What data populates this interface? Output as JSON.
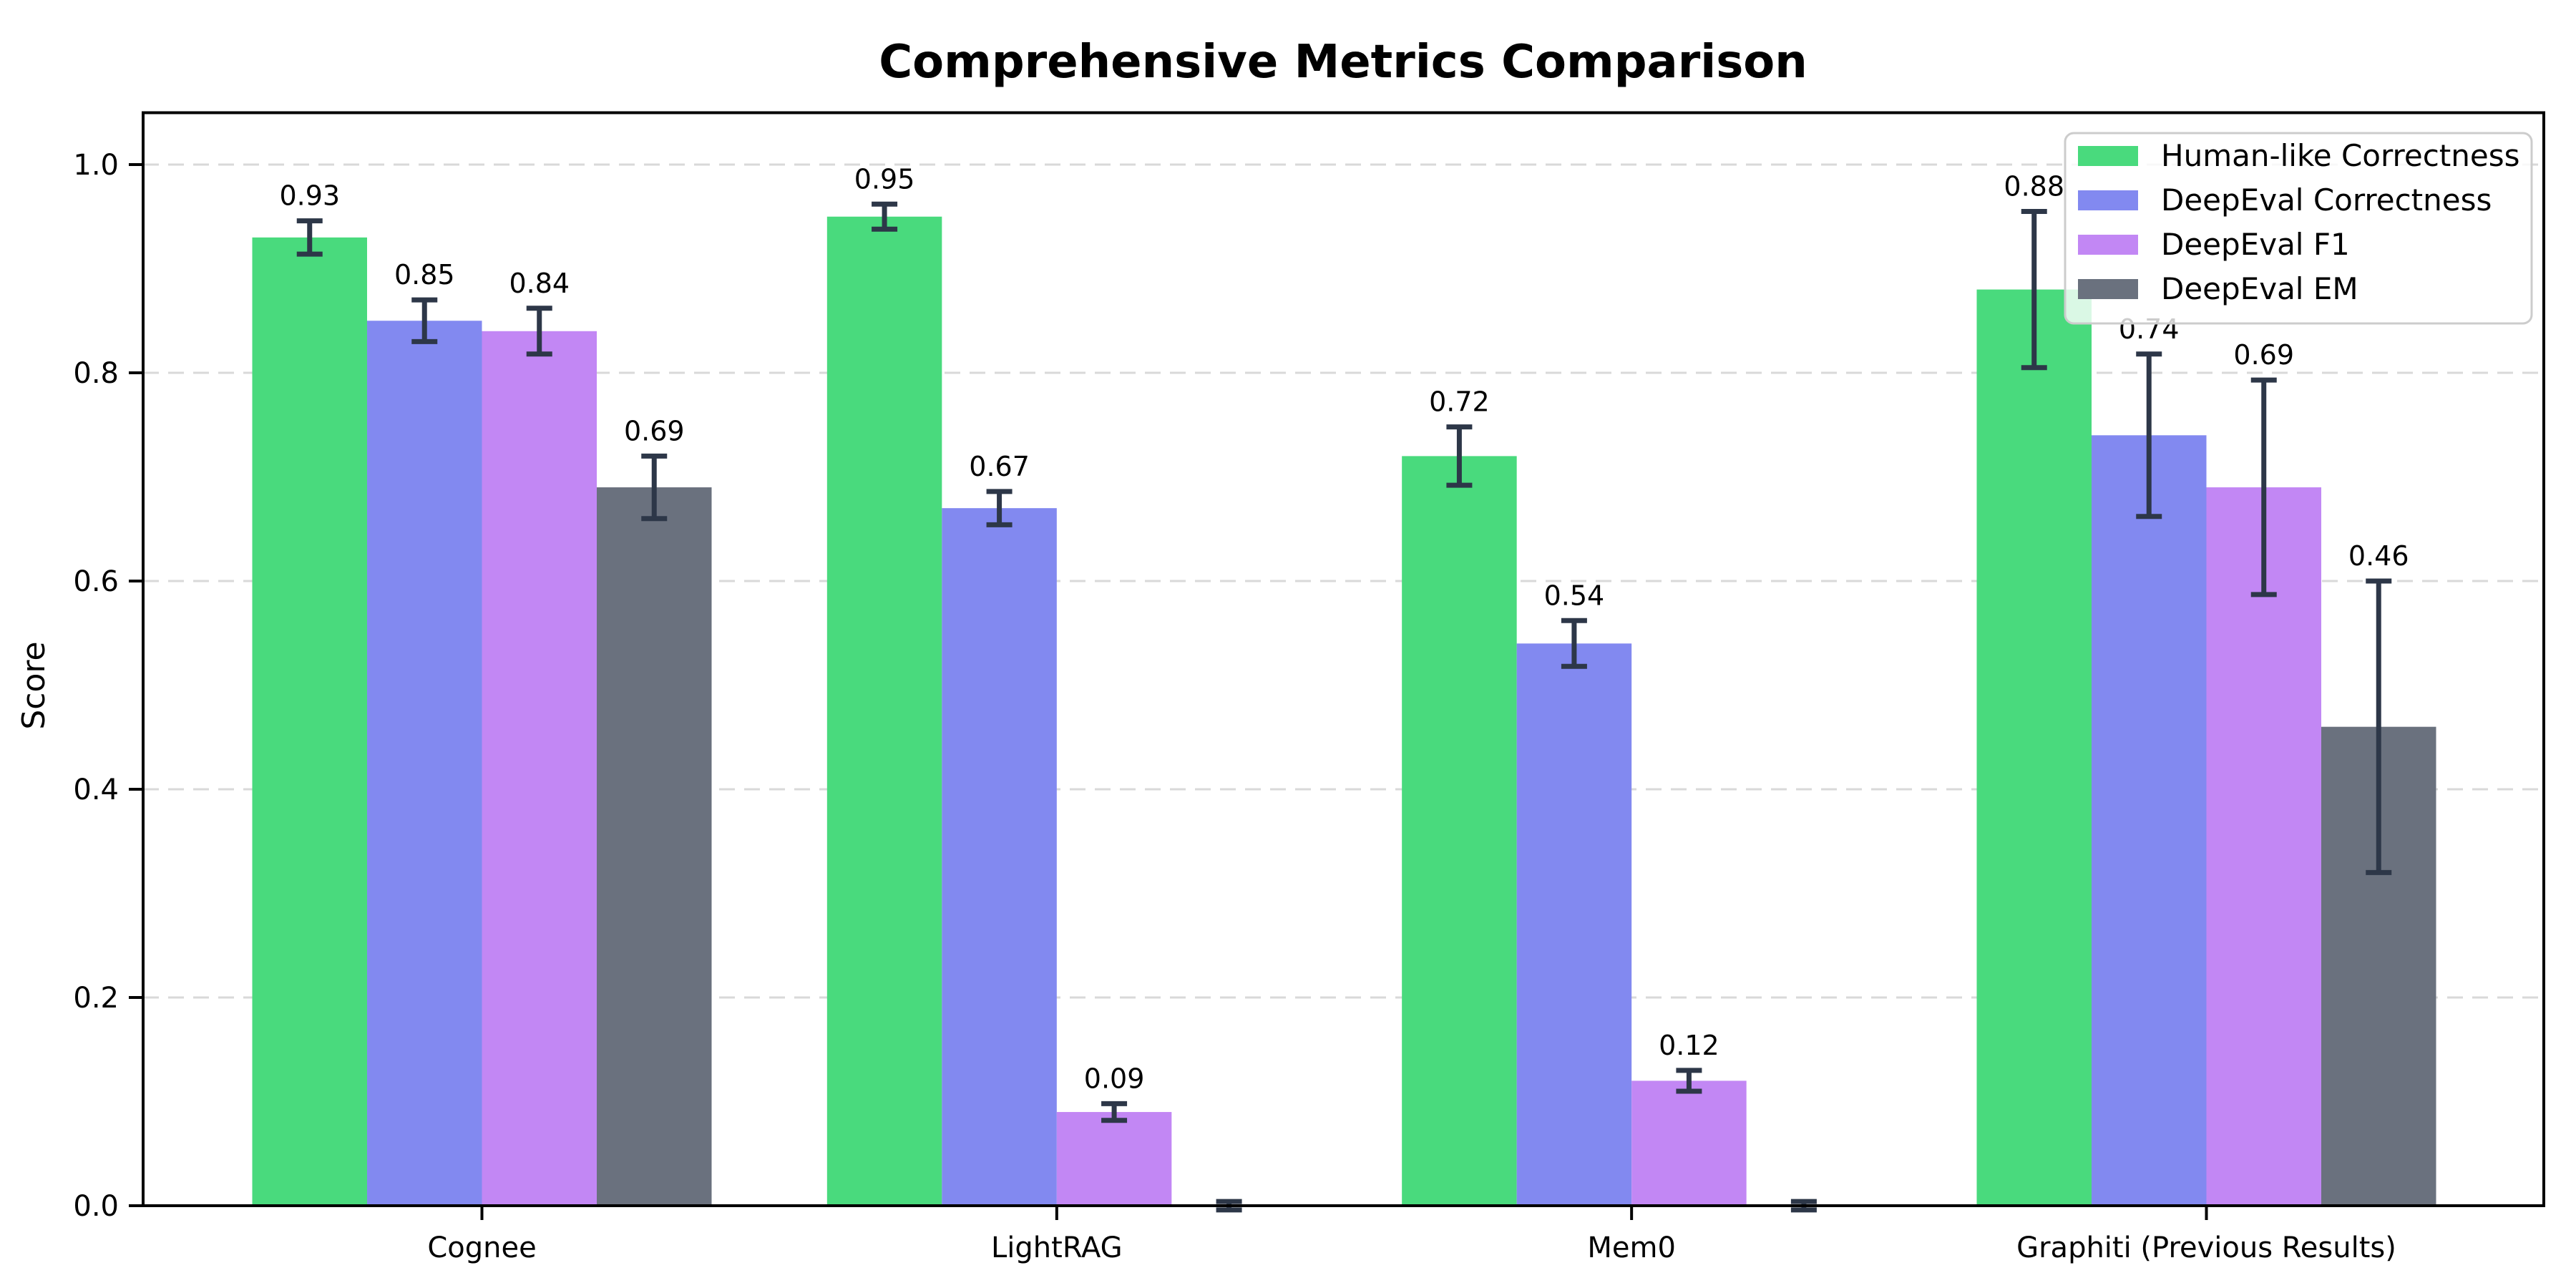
{
  "figure": {
    "background": "#ffffff"
  },
  "chart_data": {
    "type": "bar",
    "title": "Comprehensive Metrics Comparison",
    "xlabel": "",
    "ylabel": "Score",
    "categories": [
      "Cognee",
      "LightRAG",
      "Mem0",
      "Graphiti (Previous Results)"
    ],
    "series": [
      {
        "name": "Human-like Correctness",
        "color": "#49da7d",
        "values": [
          0.93,
          0.95,
          0.72,
          0.88
        ],
        "errors": [
          0.016,
          0.012,
          0.028,
          0.075
        ],
        "labels": [
          "0.93",
          "0.95",
          "0.72",
          "0.88"
        ]
      },
      {
        "name": "DeepEval Correctness",
        "color": "#8289f0",
        "values": [
          0.85,
          0.67,
          0.54,
          0.74
        ],
        "errors": [
          0.02,
          0.016,
          0.022,
          0.078
        ],
        "labels": [
          "0.85",
          "0.67",
          "0.54",
          "0.74"
        ]
      },
      {
        "name": "DeepEval F1",
        "color": "#c287f4",
        "values": [
          0.84,
          0.09,
          0.12,
          0.69
        ],
        "errors": [
          0.022,
          0.008,
          0.01,
          0.103
        ],
        "labels": [
          "0.84",
          "0.09",
          "0.12",
          "0.69"
        ]
      },
      {
        "name": "DeepEval EM",
        "color": "#6a717e",
        "values": [
          0.69,
          0.0,
          0.0,
          0.46
        ],
        "errors": [
          0.03,
          0.004,
          0.004,
          0.14
        ],
        "labels": [
          "0.69",
          "",
          "",
          "0.46"
        ]
      }
    ],
    "ylim": [
      0,
      1.05
    ],
    "yticks": {
      "values": [
        0,
        0.2,
        0.4,
        0.6,
        0.8,
        1.0
      ],
      "labels": [
        "0.0",
        "0.2",
        "0.4",
        "0.6",
        "0.8",
        "1.0"
      ]
    },
    "grid": {
      "axis": "y",
      "style": "dashed",
      "color": "#d9d9d9"
    },
    "legend": {
      "position": "upper-right",
      "entries": [
        "Human-like Correctness",
        "DeepEval Correctness",
        "DeepEval F1",
        "DeepEval EM"
      ],
      "background": "#ffffff",
      "border_color": "#cccccc"
    },
    "error_bar_color": "#2d3748",
    "axis_color": "#000000",
    "text_color": "#000000"
  }
}
